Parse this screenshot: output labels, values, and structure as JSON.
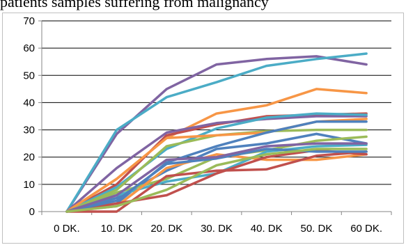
{
  "caption": "patients samples suffering from malignancy",
  "chart_data": {
    "type": "line",
    "categories": [
      "0 DK.",
      "10. DK",
      "20. DK",
      "30. DK",
      "40. DK",
      "50. DK",
      "60 DK."
    ],
    "ylim": [
      0,
      70
    ],
    "yticks": [
      0,
      10,
      20,
      30,
      40,
      50,
      60,
      70
    ],
    "grid": true,
    "legend": "none",
    "series": [
      {
        "color": "#8064a2",
        "values": [
          0,
          28.5,
          45,
          54,
          56,
          57,
          54
        ]
      },
      {
        "color": "#4bacc6",
        "values": [
          0,
          30,
          42,
          47.5,
          53.5,
          56,
          58
        ]
      },
      {
        "color": "#f79646",
        "values": [
          0,
          12,
          27,
          36,
          39,
          45,
          43.5
        ]
      },
      {
        "color": "#c0504d",
        "values": [
          0,
          10,
          28,
          32,
          35,
          35.5,
          36
        ]
      },
      {
        "color": "#8064a2",
        "values": [
          0,
          16,
          29,
          32.5,
          34,
          35,
          35
        ]
      },
      {
        "color": "#4bacc6",
        "values": [
          0,
          9,
          23,
          30.5,
          34.5,
          36,
          35.5
        ]
      },
      {
        "color": "#9bbb59",
        "values": [
          0,
          8,
          24,
          28,
          29.5,
          30,
          30
        ]
      },
      {
        "color": "#f79646",
        "values": [
          0,
          12,
          27,
          28,
          29,
          33,
          34
        ]
      },
      {
        "color": "#4f81bd",
        "values": [
          0,
          3,
          18,
          24,
          29,
          33,
          33
        ]
      },
      {
        "color": "#4f81bd",
        "values": [
          0,
          5,
          15,
          23,
          25,
          28.5,
          25
        ]
      },
      {
        "color": "#9bbb59",
        "values": [
          0,
          7,
          12,
          20,
          22.5,
          26,
          27.5
        ]
      },
      {
        "color": "#4bacc6",
        "values": [
          0,
          6,
          11,
          14,
          22,
          24,
          24.5
        ]
      },
      {
        "color": "#f79646",
        "values": [
          0,
          2,
          16,
          21,
          19,
          19,
          21
        ]
      },
      {
        "color": "#c0504d",
        "values": [
          0,
          0,
          13,
          15,
          15.5,
          20.5,
          22
        ]
      },
      {
        "color": "#c0504d",
        "values": [
          0,
          3,
          6,
          14,
          20,
          22.5,
          21
        ]
      },
      {
        "color": "#4f81bd",
        "values": [
          0,
          4,
          17.5,
          19.5,
          23,
          22,
          22
        ]
      },
      {
        "color": "#8064a2",
        "values": [
          0,
          6,
          19,
          20,
          24,
          25,
          25
        ]
      },
      {
        "color": "#9bbb59",
        "values": [
          0,
          2,
          8,
          17,
          21,
          23,
          23
        ]
      }
    ]
  }
}
